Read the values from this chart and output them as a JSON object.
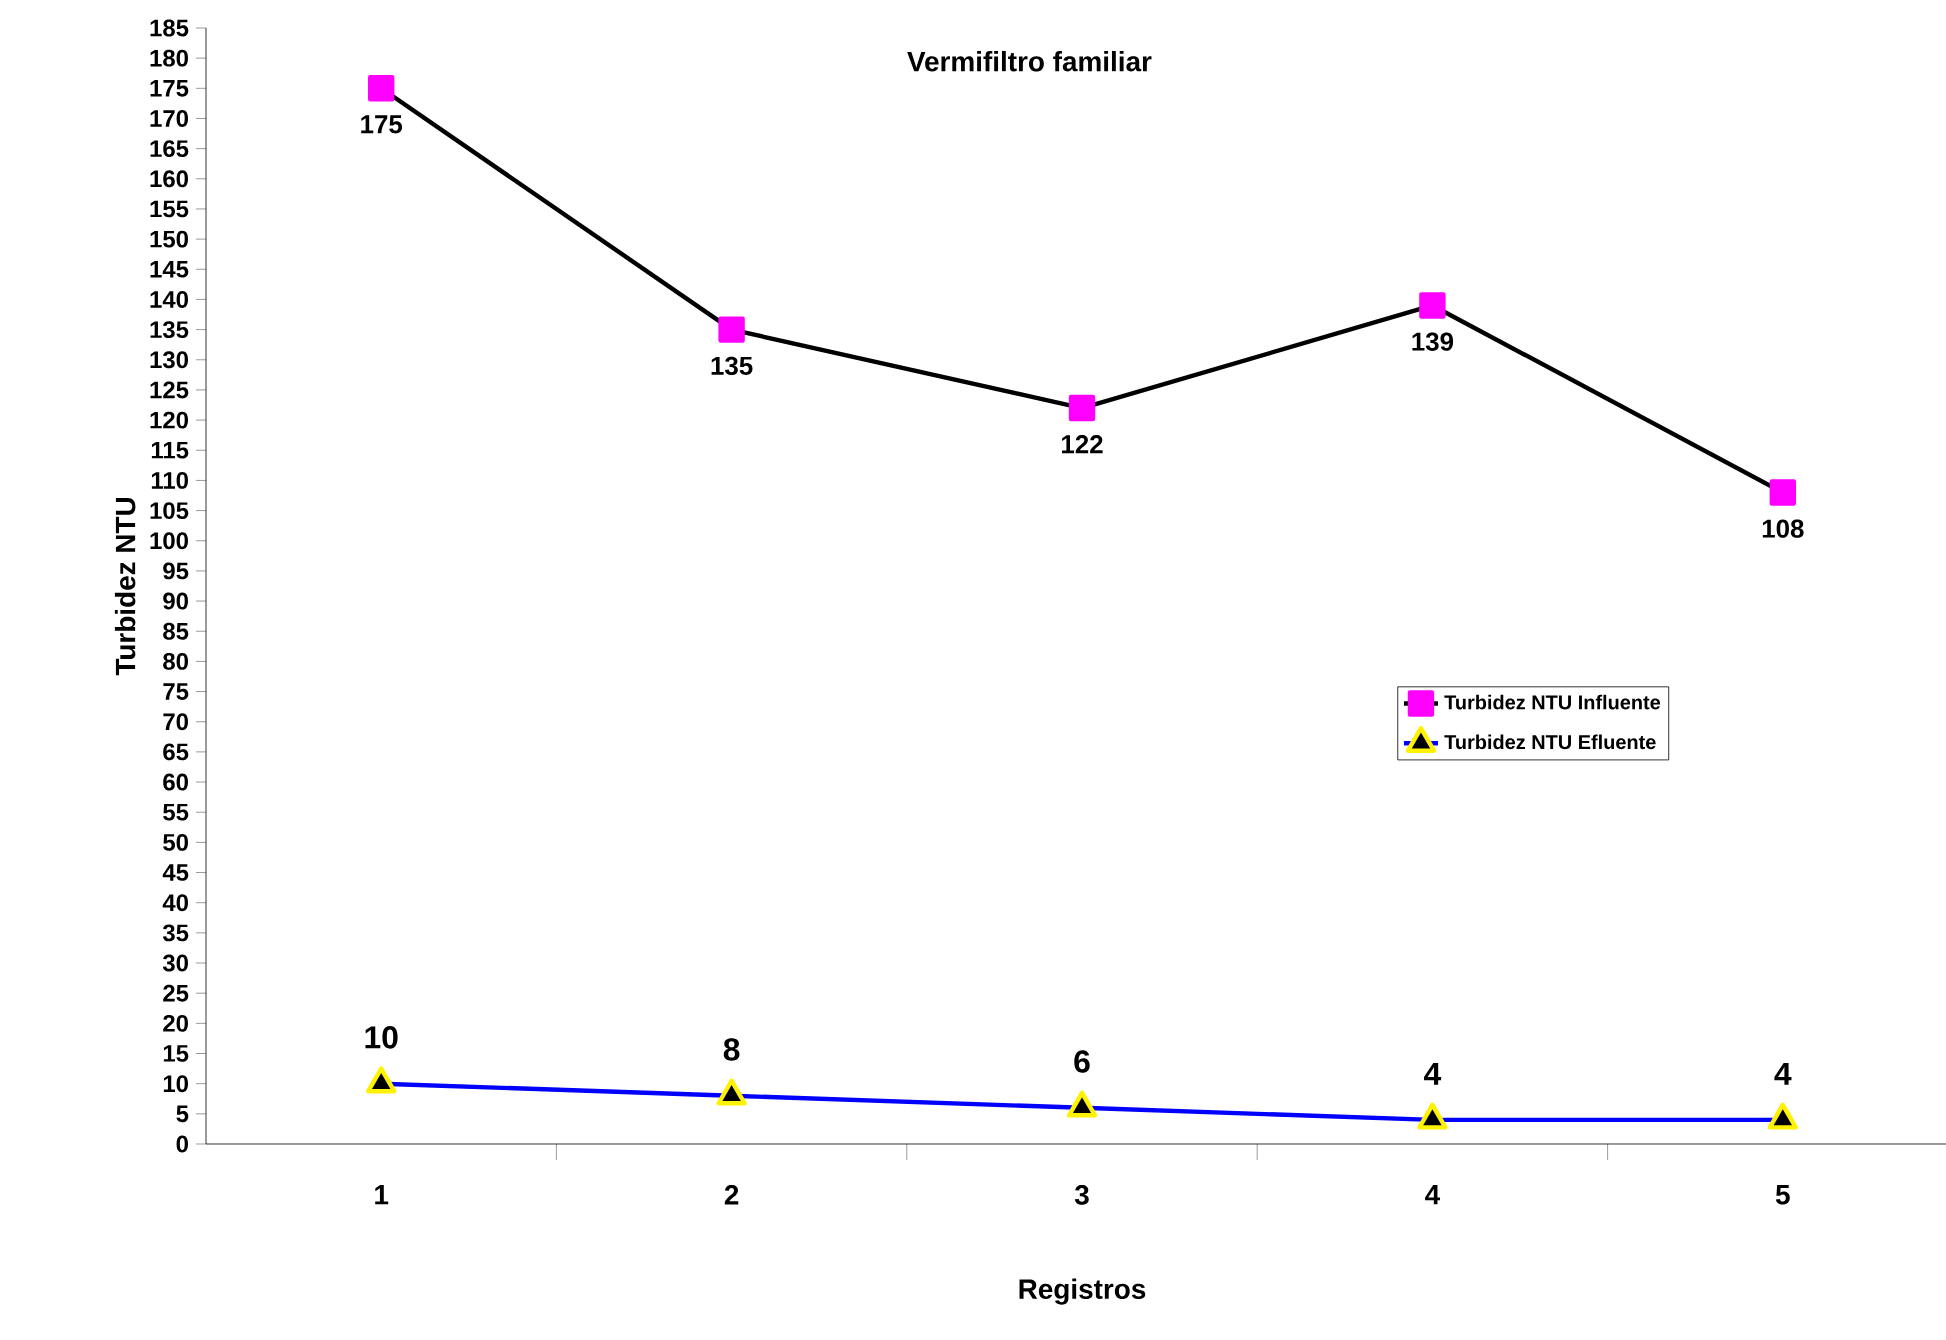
{
  "chart_data": {
    "type": "line",
    "title": "Vermifiltro familiar",
    "xlabel": "Registros",
    "ylabel": "Turbidez NTU",
    "categories": [
      "1",
      "2",
      "3",
      "4",
      "5"
    ],
    "series": [
      {
        "name": "Turbidez NTU Influente",
        "color": "#000000",
        "marker": "square",
        "colors": [
          "#ff00ff",
          "#ff00ff",
          "#ff00ff",
          "#ff00ff",
          "#ff00ff"
        ],
        "values": [
          175,
          135,
          122,
          139,
          108
        ]
      },
      {
        "name": "Turbidez NTU Efluente",
        "color": "#0000ff",
        "marker": "triangle",
        "colors": [
          "#000000",
          "#000000",
          "#000000",
          "#000000",
          "#000000"
        ],
        "values": [
          10,
          8,
          6,
          4,
          4
        ]
      }
    ],
    "ylim": [
      0,
      185
    ],
    "yticks": [
      0,
      5,
      10,
      15,
      20,
      25,
      30,
      35,
      40,
      45,
      50,
      55,
      60,
      65,
      70,
      75,
      80,
      85,
      90,
      95,
      100,
      105,
      110,
      115,
      120,
      125,
      130,
      135,
      140,
      145,
      150,
      155,
      160,
      165,
      170,
      175,
      180,
      185
    ],
    "grid": false,
    "legend": "right",
    "data_labels": true
  }
}
